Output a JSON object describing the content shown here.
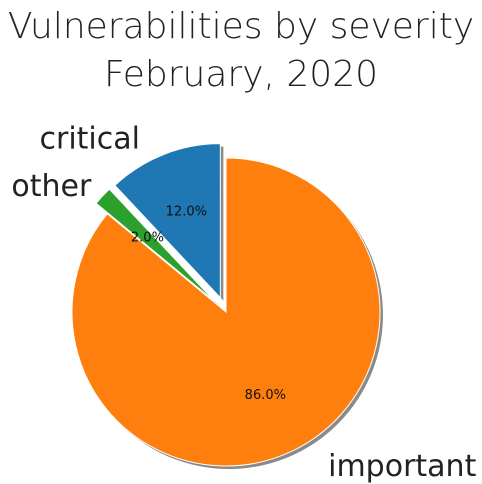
{
  "chart_data": {
    "type": "pie",
    "title": "Vulnerabilities by severity",
    "subtitle": "February, 2020",
    "slices": [
      {
        "label": "critical",
        "value": 12.0,
        "pct_label": "12.0%",
        "color": "#1f77b4",
        "exploded": true
      },
      {
        "label": "other",
        "value": 2.0,
        "pct_label": "2.0%",
        "color": "#2ca02c",
        "exploded": true
      },
      {
        "label": "important",
        "value": 86.0,
        "pct_label": "86.0%",
        "color": "#ff7f0e",
        "exploded": false
      }
    ],
    "start_angle_deg": 90,
    "direction": "counterclockwise",
    "shadow": true,
    "shadow_color": "#8a8a8a",
    "edge_color": "#ffffff"
  }
}
